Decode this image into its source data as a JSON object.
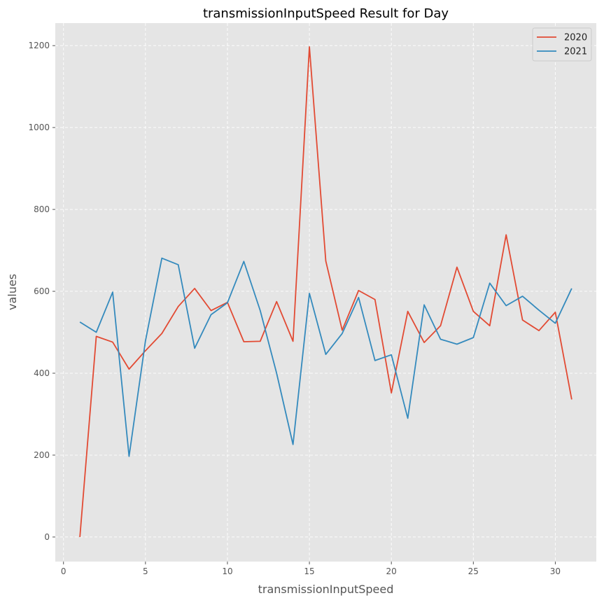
{
  "chart_data": {
    "type": "line",
    "title": "transmissionInputSpeed Result for Day",
    "xlabel": "transmissionInputSpeed",
    "ylabel": "values",
    "xlim": [
      -0.5,
      32.5
    ],
    "ylim": [
      -60,
      1255
    ],
    "xticks": [
      0,
      5,
      10,
      15,
      20,
      25,
      30
    ],
    "yticks": [
      0,
      200,
      400,
      600,
      800,
      1000,
      1200
    ],
    "grid": true,
    "legend_position": "top-right",
    "x": [
      1,
      2,
      3,
      4,
      5,
      6,
      7,
      8,
      9,
      10,
      11,
      12,
      13,
      14,
      15,
      16,
      17,
      18,
      19,
      20,
      21,
      22,
      23,
      24,
      25,
      26,
      27,
      28,
      29,
      30,
      31
    ],
    "series": [
      {
        "name": "2020",
        "color": "#E24A33",
        "values": [
          0,
          490,
          476,
          410,
          455,
          497,
          563,
          607,
          553,
          573,
          477,
          478,
          575,
          478,
          1197,
          674,
          505,
          602,
          580,
          352,
          551,
          475,
          516,
          659,
          551,
          516,
          738,
          530,
          504,
          549,
          336
        ]
      },
      {
        "name": "2021",
        "color": "#348ABD",
        "values": [
          525,
          500,
          598,
          197,
          479,
          681,
          665,
          461,
          543,
          572,
          673,
          553,
          400,
          226,
          595,
          446,
          497,
          585,
          431,
          445,
          290,
          567,
          483,
          471,
          487,
          620,
          565,
          588,
          554,
          522,
          607
        ]
      }
    ]
  }
}
